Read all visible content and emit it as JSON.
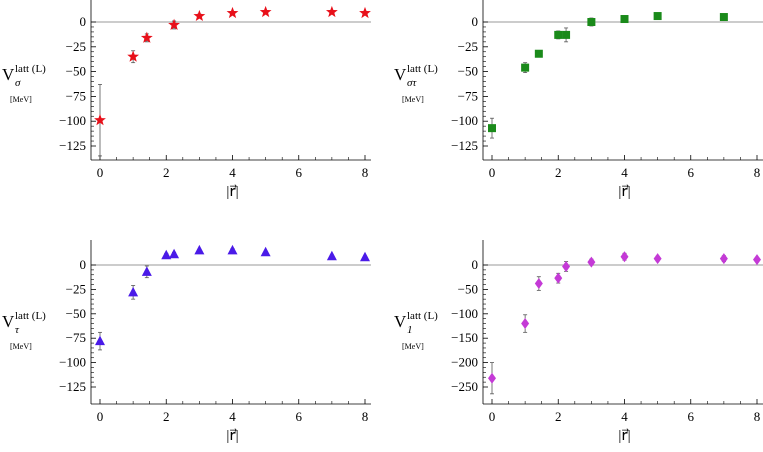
{
  "chart_data": [
    {
      "type": "scatter",
      "ylabel": {
        "main": "V",
        "sup": "latt (L)",
        "sub": "σ",
        "unit": "[MeV]"
      },
      "xlabel": "|r⃗|",
      "xlim": [
        0,
        8
      ],
      "ylim": [
        -145,
        22
      ],
      "xticks": [
        "0",
        "2",
        "4",
        "6",
        "8"
      ],
      "yticks": [
        "0",
        "−25",
        "−50",
        "−75",
        "−100",
        "−125"
      ],
      "marker": "star",
      "color": "#e8101a",
      "points": [
        {
          "x": 0,
          "y": -99,
          "err": 36
        },
        {
          "x": 1,
          "y": -35,
          "err": 6
        },
        {
          "x": 1.414,
          "y": -16,
          "err": 4
        },
        {
          "x": 2.236,
          "y": -3,
          "err": 4
        },
        {
          "x": 3,
          "y": 6,
          "err": 2
        },
        {
          "x": 4,
          "y": 9,
          "err": 1
        },
        {
          "x": 5,
          "y": 10,
          "err": 1
        },
        {
          "x": 7,
          "y": 10,
          "err": 1
        },
        {
          "x": 8,
          "y": 9,
          "err": 1
        }
      ]
    },
    {
      "type": "scatter",
      "ylabel": {
        "main": "V",
        "sup": "latt (L)",
        "sub": "στ",
        "unit": "[MeV]"
      },
      "xlabel": "|r⃗|",
      "xlim": [
        0,
        8
      ],
      "ylim": [
        -145,
        22
      ],
      "xticks": [
        "0",
        "2",
        "4",
        "6",
        "8"
      ],
      "yticks": [
        "0",
        "−25",
        "−50",
        "−75",
        "−100",
        "−125"
      ],
      "marker": "square",
      "color": "#1a8a1a",
      "points": [
        {
          "x": 0,
          "y": -107,
          "err": 10
        },
        {
          "x": 1,
          "y": -46,
          "err": 5
        },
        {
          "x": 1.414,
          "y": -32,
          "err": 3
        },
        {
          "x": 2,
          "y": -13,
          "err": 4
        },
        {
          "x": 2.236,
          "y": -13,
          "err": 7
        },
        {
          "x": 3,
          "y": 0,
          "err": 4
        },
        {
          "x": 4,
          "y": 3,
          "err": 2
        },
        {
          "x": 5,
          "y": 6,
          "err": 2
        },
        {
          "x": 7,
          "y": 5,
          "err": 2
        }
      ]
    },
    {
      "type": "scatter",
      "ylabel": {
        "main": "V",
        "sup": "latt (L)",
        "sub": "τ",
        "unit": "[MeV]"
      },
      "xlabel": "|r⃗|",
      "xlim": [
        0,
        8
      ],
      "ylim": [
        -145,
        22
      ],
      "xticks": [
        "0",
        "2",
        "4",
        "6",
        "8"
      ],
      "yticks": [
        "0",
        "−25",
        "−50",
        "−75",
        "−100",
        "−125"
      ],
      "marker": "triangle",
      "color": "#4a1ae8",
      "points": [
        {
          "x": 0,
          "y": -78,
          "err": 9
        },
        {
          "x": 1,
          "y": -28,
          "err": 7
        },
        {
          "x": 1.414,
          "y": -7,
          "err": 6
        },
        {
          "x": 2,
          "y": 10,
          "err": 2
        },
        {
          "x": 2.236,
          "y": 11,
          "err": 2
        },
        {
          "x": 3,
          "y": 15,
          "err": 1
        },
        {
          "x": 4,
          "y": 15,
          "err": 2
        },
        {
          "x": 5,
          "y": 13,
          "err": 1
        },
        {
          "x": 7,
          "y": 9,
          "err": 1
        },
        {
          "x": 8,
          "y": 8,
          "err": 1
        }
      ]
    },
    {
      "type": "scatter",
      "ylabel": {
        "main": "V",
        "sup": "latt (L)",
        "sub": "1",
        "unit": "[MeV]"
      },
      "xlabel": "|r⃗|",
      "xlim": [
        0,
        8
      ],
      "ylim": [
        -280,
        25
      ],
      "xticks": [
        "0",
        "2",
        "4",
        "6",
        "8"
      ],
      "yticks": [
        "0",
        "−50",
        "−100",
        "−150",
        "−200",
        "−250"
      ],
      "marker": "diamond",
      "color": "#c43ad6",
      "points": [
        {
          "x": 0,
          "y": -232,
          "err": 32
        },
        {
          "x": 1,
          "y": -120,
          "err": 18
        },
        {
          "x": 1.414,
          "y": -38,
          "err": 14
        },
        {
          "x": 2,
          "y": -27,
          "err": 10
        },
        {
          "x": 2.236,
          "y": -3,
          "err": 10
        },
        {
          "x": 3,
          "y": 6,
          "err": 6
        },
        {
          "x": 4,
          "y": 17,
          "err": 7
        },
        {
          "x": 5,
          "y": 13,
          "err": 5
        },
        {
          "x": 7,
          "y": 13,
          "err": 6
        },
        {
          "x": 8,
          "y": 11,
          "err": 4
        }
      ]
    }
  ]
}
